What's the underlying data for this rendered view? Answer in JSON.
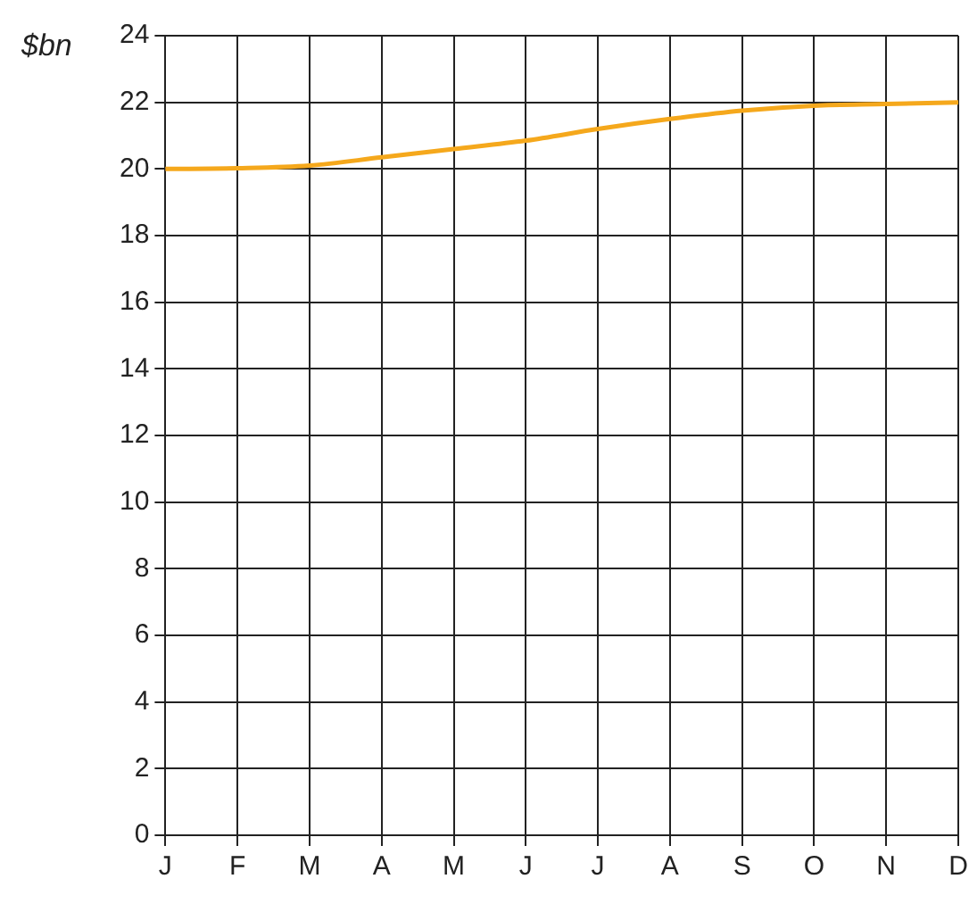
{
  "chart_data": {
    "type": "line",
    "ylabel": "$bn",
    "categories": [
      "J",
      "F",
      "M",
      "A",
      "M",
      "J",
      "J",
      "A",
      "S",
      "O",
      "N",
      "D"
    ],
    "series": [
      {
        "color": "#f5a81c",
        "values": [
          20,
          20.02,
          20.1,
          20.35,
          20.6,
          20.85,
          21.2,
          21.5,
          21.75,
          21.9,
          21.95,
          22
        ]
      }
    ],
    "ylim": [
      0,
      24
    ],
    "yticks": [
      0,
      2,
      4,
      6,
      8,
      10,
      12,
      14,
      16,
      18,
      20,
      22,
      24
    ],
    "grid": true,
    "legend": false,
    "marker": "none",
    "line_style": "solid"
  }
}
